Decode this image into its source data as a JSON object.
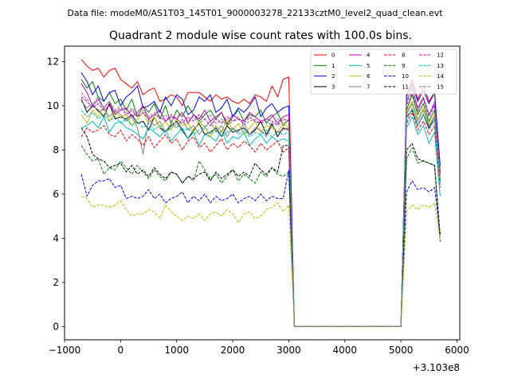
{
  "chart_data": {
    "type": "line",
    "suptitle": "Data file: modeM0/AS1T03_145T01_9000003278_22133cztM0_level2_quad_clean.evt",
    "title": "Quadrant 2 module wise count rates with 100.0s bins.",
    "xlabel": "",
    "ylabel": "",
    "x_offset_label": "+3.103e8",
    "xlim": [
      -1000,
      6050
    ],
    "ylim": [
      -0.6,
      12.7
    ],
    "xticks": [
      -1000,
      0,
      1000,
      2000,
      3000,
      4000,
      5000,
      6000
    ],
    "xtick_labels": [
      "−1000",
      "0",
      "1000",
      "2000",
      "3000",
      "4000",
      "5000",
      "6000"
    ],
    "yticks": [
      0,
      2,
      4,
      6,
      8,
      10,
      12
    ],
    "ytick_labels": [
      "0",
      "2",
      "4",
      "6",
      "8",
      "10",
      "12"
    ],
    "grid": false,
    "legend_position": "top-right",
    "legend_columns": 4,
    "x": [
      -700,
      -600,
      -500,
      -400,
      -300,
      -200,
      -100,
      0,
      100,
      200,
      300,
      400,
      500,
      600,
      700,
      800,
      900,
      1000,
      1100,
      1200,
      1300,
      1400,
      1500,
      1600,
      1700,
      1800,
      1900,
      2000,
      2100,
      2200,
      2300,
      2400,
      2500,
      2600,
      2700,
      2800,
      2900,
      3000,
      3100,
      3200,
      3300,
      3400,
      3500,
      3600,
      3700,
      3800,
      3900,
      4000,
      4100,
      4200,
      4300,
      4400,
      4500,
      4600,
      4700,
      4800,
      4900,
      5000,
      5100,
      5200,
      5300,
      5400,
      5500,
      5600,
      5700
    ],
    "series": [
      {
        "name": "0",
        "color": "#ff0000",
        "dash": "solid",
        "values": [
          12.1,
          11.8,
          11.6,
          11.7,
          11.3,
          11.6,
          11.7,
          11.2,
          11.0,
          10.8,
          11.1,
          10.5,
          10.7,
          10.8,
          10.2,
          10.3,
          10.5,
          10.4,
          10.0,
          10.6,
          10.6,
          10.6,
          10.4,
          10.2,
          10.5,
          10.3,
          10.4,
          10.2,
          10.1,
          10.3,
          10.1,
          10.5,
          10.4,
          10.2,
          10.9,
          10.4,
          11.2,
          11.3,
          0.0,
          0.0,
          0.0,
          0.0,
          0.0,
          0.0,
          0.0,
          0.0,
          0.0,
          0.0,
          0.0,
          0.0,
          0.0,
          0.0,
          0.0,
          0.0,
          0.0,
          0.0,
          0.0,
          0.0,
          10.4,
          11.2,
          10.3,
          10.9,
          10.2,
          10.6,
          7.1
        ]
      },
      {
        "name": "1",
        "color": "#008000",
        "dash": "solid",
        "values": [
          11.2,
          10.8,
          11.1,
          10.4,
          10.2,
          10.6,
          10.1,
          10.3,
          9.8,
          10.3,
          9.5,
          10.0,
          9.7,
          10.1,
          9.4,
          10.0,
          9.2,
          9.8,
          9.5,
          10.0,
          9.6,
          9.3,
          9.6,
          9.8,
          9.4,
          9.7,
          9.1,
          9.5,
          9.8,
          9.3,
          9.6,
          9.5,
          9.8,
          9.2,
          9.5,
          9.7,
          9.1,
          9.4,
          0.0,
          0.0,
          0.0,
          0.0,
          0.0,
          0.0,
          0.0,
          0.0,
          0.0,
          0.0,
          0.0,
          0.0,
          0.0,
          0.0,
          0.0,
          0.0,
          0.0,
          0.0,
          0.0,
          0.0,
          9.8,
          10.5,
          9.6,
          10.1,
          9.3,
          9.8,
          6.9
        ]
      },
      {
        "name": "2",
        "color": "#0000ff",
        "dash": "solid",
        "values": [
          11.5,
          11.1,
          10.5,
          10.9,
          10.2,
          10.6,
          10.7,
          10.0,
          10.4,
          10.6,
          10.9,
          9.9,
          10.0,
          10.2,
          9.7,
          10.4,
          10.0,
          10.5,
          10.3,
          9.6,
          9.8,
          10.4,
          10.2,
          10.5,
          9.7,
          9.9,
          10.3,
          9.5,
          9.9,
          9.7,
          10.0,
          10.4,
          9.5,
          9.9,
          10.1,
          9.7,
          9.9,
          10.0,
          0.0,
          0.0,
          0.0,
          0.0,
          0.0,
          0.0,
          0.0,
          0.0,
          0.0,
          0.0,
          0.0,
          0.0,
          0.0,
          0.0,
          0.0,
          0.0,
          0.0,
          0.0,
          0.0,
          0.0,
          10.5,
          11.0,
          10.2,
          10.7,
          10.1,
          10.6,
          7.3
        ]
      },
      {
        "name": "3",
        "color": "#000000",
        "dash": "solid",
        "values": [
          10.3,
          9.7,
          10.0,
          9.8,
          9.5,
          10.1,
          9.4,
          9.5,
          9.4,
          9.6,
          9.2,
          9.3,
          8.9,
          9.5,
          9.0,
          8.8,
          9.1,
          9.3,
          8.9,
          8.5,
          8.9,
          9.2,
          8.7,
          8.8,
          9.0,
          8.6,
          9.1,
          8.8,
          8.9,
          9.0,
          8.7,
          8.9,
          9.3,
          8.7,
          9.2,
          8.6,
          9.0,
          8.9,
          0.0,
          0.0,
          0.0,
          0.0,
          0.0,
          0.0,
          0.0,
          0.0,
          0.0,
          0.0,
          0.0,
          0.0,
          0.0,
          0.0,
          0.0,
          0.0,
          0.0,
          0.0,
          0.0,
          0.0,
          9.5,
          9.8,
          9.1,
          9.6,
          9.0,
          9.4,
          6.6
        ]
      },
      {
        "name": "4",
        "color": "#bf00bf",
        "dash": "solid",
        "values": [
          11.0,
          10.6,
          10.0,
          10.3,
          9.9,
          10.2,
          9.6,
          9.8,
          9.9,
          9.5,
          9.7,
          10.0,
          9.4,
          9.6,
          9.8,
          9.3,
          9.5,
          9.4,
          9.7,
          9.2,
          9.6,
          9.4,
          9.8,
          9.3,
          9.5,
          9.7,
          9.2,
          9.6,
          9.4,
          9.3,
          9.7,
          9.5,
          9.3,
          9.4,
          9.6,
          9.2,
          9.5,
          9.6,
          0.0,
          0.0,
          0.0,
          0.0,
          0.0,
          0.0,
          0.0,
          0.0,
          0.0,
          0.0,
          0.0,
          0.0,
          0.0,
          0.0,
          0.0,
          0.0,
          0.0,
          0.0,
          0.0,
          0.0,
          10.2,
          10.8,
          9.9,
          10.4,
          9.6,
          10.1,
          7.0
        ]
      },
      {
        "name": "5",
        "color": "#00bfbf",
        "dash": "solid",
        "values": [
          9.0,
          9.1,
          9.3,
          9.0,
          9.5,
          8.8,
          9.2,
          9.3,
          9.0,
          8.9,
          8.7,
          8.5,
          9.0,
          8.8,
          8.6,
          8.9,
          8.4,
          8.7,
          9.0,
          8.5,
          8.8,
          8.2,
          8.7,
          8.6,
          8.4,
          8.9,
          8.3,
          8.6,
          8.5,
          8.8,
          8.2,
          8.5,
          8.7,
          8.3,
          8.6,
          8.4,
          8.5,
          8.4,
          0.0,
          0.0,
          0.0,
          0.0,
          0.0,
          0.0,
          0.0,
          0.0,
          0.0,
          0.0,
          0.0,
          0.0,
          0.0,
          0.0,
          0.0,
          0.0,
          0.0,
          0.0,
          0.0,
          0.0,
          9.0,
          9.5,
          8.7,
          9.1,
          8.3,
          8.8,
          5.9
        ]
      },
      {
        "name": "6",
        "color": "#bfbf00",
        "dash": "solid",
        "values": [
          9.6,
          9.2,
          9.8,
          9.5,
          9.9,
          9.3,
          9.7,
          9.5,
          9.6,
          9.1,
          9.4,
          9.7,
          9.2,
          9.5,
          9.0,
          9.3,
          8.9,
          9.4,
          9.1,
          9.2,
          8.8,
          9.3,
          9.0,
          8.6,
          9.1,
          8.8,
          9.4,
          8.9,
          9.2,
          8.7,
          9.0,
          9.3,
          8.8,
          9.1,
          9.0,
          8.8,
          9.2,
          9.0,
          0.0,
          0.0,
          0.0,
          0.0,
          0.0,
          0.0,
          0.0,
          0.0,
          0.0,
          0.0,
          0.0,
          0.0,
          0.0,
          0.0,
          0.0,
          0.0,
          0.0,
          0.0,
          0.0,
          0.0,
          9.7,
          10.2,
          9.4,
          9.9,
          9.2,
          9.6,
          6.7
        ]
      },
      {
        "name": "7",
        "color": "#808080",
        "dash": "solid",
        "values": [
          10.2,
          9.9,
          10.1,
          9.7,
          9.9,
          9.5,
          9.8,
          9.6,
          9.3,
          9.5,
          9.0,
          7.8,
          9.4,
          9.1,
          9.3,
          8.8,
          9.2,
          9.0,
          9.4,
          8.9,
          9.1,
          8.7,
          9.0,
          9.3,
          8.8,
          9.1,
          8.6,
          9.0,
          8.8,
          9.2,
          8.7,
          9.0,
          8.9,
          8.6,
          9.1,
          8.8,
          8.9,
          9.0,
          0.0,
          0.0,
          0.0,
          0.0,
          0.0,
          0.0,
          0.0,
          0.0,
          0.0,
          0.0,
          0.0,
          0.0,
          0.0,
          0.0,
          0.0,
          0.0,
          0.0,
          0.0,
          0.0,
          0.0,
          9.6,
          10.1,
          9.3,
          9.8,
          9.1,
          9.5,
          6.8
        ]
      },
      {
        "name": "8",
        "color": "#ff0000",
        "dash": "dashed",
        "values": [
          8.6,
          9.0,
          8.8,
          8.9,
          9.1,
          8.7,
          8.6,
          8.9,
          8.4,
          8.7,
          8.5,
          8.2,
          8.6,
          8.1,
          8.4,
          8.7,
          8.3,
          8.5,
          8.0,
          8.4,
          8.6,
          8.1,
          8.3,
          7.9,
          8.2,
          8.5,
          8.0,
          8.3,
          8.1,
          8.4,
          8.2,
          7.9,
          8.3,
          8.0,
          8.2,
          8.4,
          7.9,
          8.1,
          0.0,
          0.0,
          0.0,
          0.0,
          0.0,
          0.0,
          0.0,
          0.0,
          0.0,
          0.0,
          0.0,
          0.0,
          0.0,
          0.0,
          0.0,
          0.0,
          0.0,
          0.0,
          0.0,
          0.0,
          9.2,
          9.7,
          8.9,
          9.3,
          8.7,
          9.1,
          6.3
        ]
      },
      {
        "name": "9",
        "color": "#008000",
        "dash": "dashed",
        "values": [
          8.2,
          7.8,
          7.5,
          7.6,
          6.9,
          7.2,
          7.1,
          7.5,
          7.2,
          6.9,
          7.3,
          7.0,
          6.7,
          7.1,
          6.8,
          6.6,
          7.0,
          6.9,
          6.5,
          6.8,
          6.6,
          7.5,
          7.1,
          6.7,
          6.9,
          6.5,
          6.8,
          7.1,
          6.6,
          6.9,
          6.7,
          6.5,
          7.0,
          6.8,
          7.2,
          6.9,
          6.8,
          7.0,
          0.0,
          0.0,
          0.0,
          0.0,
          0.0,
          0.0,
          0.0,
          0.0,
          0.0,
          0.0,
          0.0,
          0.0,
          0.0,
          0.0,
          0.0,
          0.0,
          0.0,
          0.0,
          0.0,
          0.0,
          7.6,
          8.1,
          7.4,
          7.5,
          7.4,
          7.3,
          3.8
        ]
      },
      {
        "name": "10",
        "color": "#0000ff",
        "dash": "dashed",
        "values": [
          6.9,
          5.9,
          6.4,
          6.6,
          6.6,
          6.7,
          6.3,
          6.4,
          5.8,
          5.9,
          5.8,
          5.9,
          6.2,
          5.8,
          6.0,
          5.6,
          5.8,
          5.9,
          6.1,
          5.6,
          5.9,
          5.7,
          6.0,
          5.6,
          5.9,
          5.7,
          5.8,
          6.0,
          5.6,
          5.8,
          5.9,
          5.7,
          6.0,
          5.7,
          5.9,
          5.8,
          5.8,
          7.1,
          0.0,
          0.0,
          0.0,
          0.0,
          0.0,
          0.0,
          0.0,
          0.0,
          0.0,
          0.0,
          0.0,
          0.0,
          0.0,
          0.0,
          0.0,
          0.0,
          0.0,
          0.0,
          0.0,
          0.0,
          6.1,
          6.6,
          6.2,
          6.3,
          6.1,
          6.3,
          4.2
        ]
      },
      {
        "name": "11",
        "color": "#000000",
        "dash": "dashed",
        "values": [
          9.0,
          8.6,
          7.8,
          7.6,
          7.5,
          7.2,
          7.3,
          7.4,
          7.0,
          7.3,
          6.9,
          7.1,
          6.8,
          7.2,
          6.9,
          6.7,
          7.0,
          6.9,
          6.5,
          6.8,
          6.7,
          6.9,
          7.0,
          6.6,
          7.0,
          6.7,
          6.9,
          7.1,
          6.8,
          7.0,
          6.8,
          7.4,
          7.1,
          6.9,
          7.2,
          7.0,
          8.2,
          8.2,
          0.0,
          0.0,
          0.0,
          0.0,
          0.0,
          0.0,
          0.0,
          0.0,
          0.0,
          0.0,
          0.0,
          0.0,
          0.0,
          0.0,
          0.0,
          0.0,
          0.0,
          0.0,
          0.0,
          0.0,
          8.0,
          8.3,
          7.6,
          7.5,
          7.4,
          7.3,
          4.1
        ]
      },
      {
        "name": "12",
        "color": "#bf00bf",
        "dash": "dashed",
        "values": [
          10.4,
          10.2,
          9.9,
          10.1,
          9.8,
          10.0,
          9.7,
          9.9,
          9.6,
          9.8,
          9.5,
          9.7,
          9.4,
          9.6,
          9.5,
          9.3,
          9.6,
          9.4,
          9.2,
          9.5,
          9.3,
          9.6,
          9.4,
          9.1,
          9.4,
          9.2,
          9.5,
          9.3,
          9.4,
          9.2,
          9.5,
          9.3,
          9.2,
          9.4,
          9.3,
          9.1,
          9.4,
          9.3,
          0.0,
          0.0,
          0.0,
          0.0,
          0.0,
          0.0,
          0.0,
          0.0,
          0.0,
          0.0,
          0.0,
          0.0,
          0.0,
          0.0,
          0.0,
          0.0,
          0.0,
          0.0,
          0.0,
          0.0,
          10.0,
          10.6,
          9.8,
          10.3,
          9.5,
          10.0,
          6.9
        ]
      },
      {
        "name": "13",
        "color": "#00bfbf",
        "dash": "dashed",
        "values": [
          9.8,
          9.5,
          9.7,
          9.4,
          9.6,
          9.3,
          9.5,
          9.2,
          9.4,
          9.1,
          9.3,
          9.0,
          9.2,
          8.9,
          9.1,
          8.8,
          9.0,
          9.2,
          8.8,
          9.0,
          8.7,
          8.9,
          9.1,
          8.7,
          8.9,
          8.6,
          8.8,
          9.0,
          8.7,
          8.9,
          8.6,
          8.8,
          8.7,
          8.9,
          8.6,
          8.8,
          8.7,
          8.8,
          0.0,
          0.0,
          0.0,
          0.0,
          0.0,
          0.0,
          0.0,
          0.0,
          0.0,
          0.0,
          0.0,
          0.0,
          0.0,
          0.0,
          0.0,
          0.0,
          0.0,
          0.0,
          0.0,
          0.0,
          9.3,
          9.9,
          9.1,
          9.6,
          8.9,
          9.4,
          6.5
        ]
      },
      {
        "name": "14",
        "color": "#bfbf00",
        "dash": "dashed",
        "values": [
          5.9,
          5.8,
          5.4,
          5.5,
          5.5,
          5.4,
          5.5,
          5.7,
          5.3,
          5.0,
          5.1,
          5.1,
          5.3,
          5.2,
          4.9,
          5.5,
          5.2,
          5.0,
          4.8,
          5.0,
          4.9,
          5.1,
          4.8,
          5.1,
          5.2,
          5.0,
          5.3,
          5.1,
          4.7,
          5.1,
          5.2,
          4.9,
          5.0,
          5.3,
          5.4,
          5.6,
          5.2,
          5.5,
          0.0,
          0.0,
          0.0,
          0.0,
          0.0,
          0.0,
          0.0,
          0.0,
          0.0,
          0.0,
          0.0,
          0.0,
          0.0,
          0.0,
          0.0,
          0.0,
          0.0,
          0.0,
          0.0,
          0.0,
          5.2,
          5.5,
          5.3,
          5.5,
          5.4,
          5.6,
          3.9
        ]
      },
      {
        "name": "15",
        "color": "#808080",
        "dash": "dashed",
        "values": [
          10.6,
          10.3,
          10.1,
          10.4,
          9.9,
          10.2,
          9.8,
          10.0,
          9.7,
          9.9,
          9.6,
          9.8,
          9.5,
          9.7,
          9.4,
          9.6,
          9.3,
          9.5,
          9.7,
          9.3,
          9.5,
          9.2,
          9.4,
          9.6,
          9.2,
          9.4,
          9.1,
          9.3,
          9.5,
          9.1,
          9.3,
          9.4,
          9.2,
          9.3,
          9.1,
          9.4,
          9.2,
          9.3,
          0.0,
          0.0,
          0.0,
          0.0,
          0.0,
          0.0,
          0.0,
          0.0,
          0.0,
          0.0,
          0.0,
          0.0,
          0.0,
          0.0,
          0.0,
          0.0,
          0.0,
          0.0,
          0.0,
          0.0,
          10.1,
          10.9,
          9.7,
          10.4,
          9.6,
          10.2,
          7.0
        ]
      }
    ]
  }
}
